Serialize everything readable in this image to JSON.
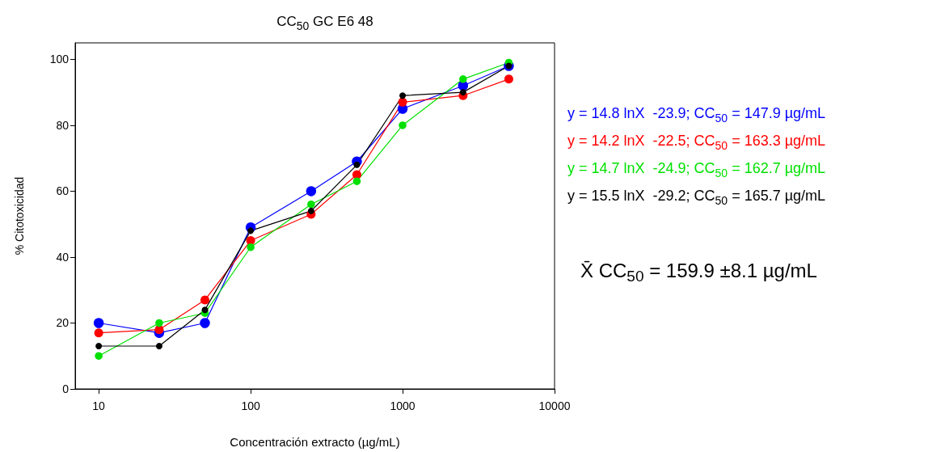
{
  "chart_data": {
    "type": "line",
    "title": "CC$_{50}$ GC E6 48",
    "xlabel": "Concentración extracto (µg/mL)",
    "ylabel": "% Citotoxicidad",
    "x": [
      10,
      25,
      50,
      100,
      250,
      500,
      1000,
      2500,
      5000
    ],
    "series": [
      {
        "color": "#0000ff",
        "values": [
          20,
          17,
          20,
          49,
          60,
          69,
          85,
          92,
          98
        ]
      },
      {
        "color": "#ff0000",
        "values": [
          17,
          18,
          27,
          45,
          53,
          65,
          87,
          89,
          94
        ]
      },
      {
        "color": "#00e000",
        "values": [
          10,
          20,
          23,
          43,
          56,
          63,
          80,
          94,
          99
        ]
      },
      {
        "color": "#000000",
        "values": [
          13,
          13,
          24,
          48,
          54,
          68,
          89,
          90,
          98
        ]
      }
    ],
    "log": "x",
    "xlim": [
      7,
      10000
    ],
    "xticks": [
      10,
      100,
      1000,
      10000
    ],
    "ylim": [
      0,
      105
    ],
    "yticks": [
      0,
      20,
      40,
      60,
      80,
      100
    ],
    "grid": false,
    "marker": "circle",
    "line_style": "solid",
    "annotations": [
      "y = 14.8 lnX  -23.9; CC$_{50}$ = 147.9 µg/mL",
      "y = 14.2 lnX  -22.5; CC$_{50}$ = 163.3 µg/mL",
      "y = 14.7 lnX  -24.9; CC$_{50}$ = 162.7 µg/mL",
      "y = 15.5 lnX  -29.2; CC$_{50}$ = 165.7 µg/mL",
      "X̄ CC$_{50}$ = 159.9 ±8.1 µg/mL"
    ]
  }
}
